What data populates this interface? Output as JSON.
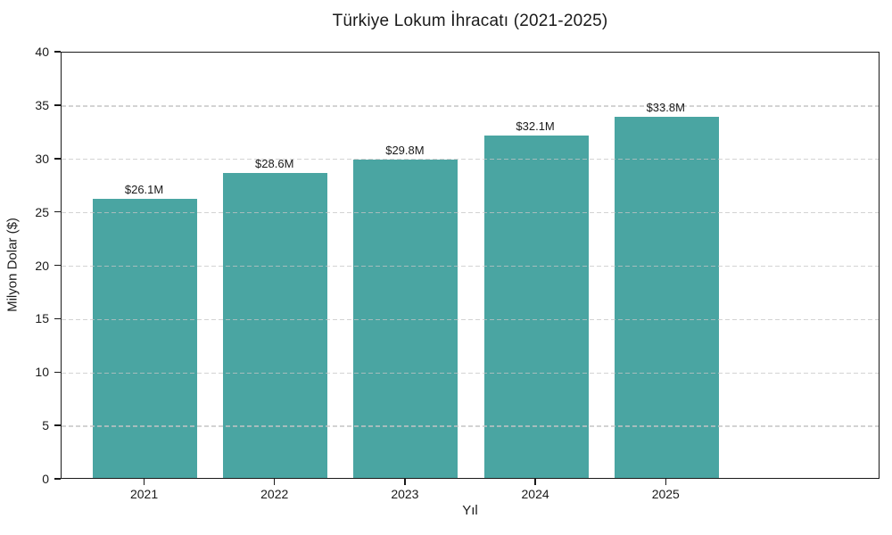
{
  "chart_data": {
    "type": "bar",
    "title": "Türkiye Lokum İhracatı (2021-2025)",
    "xlabel": "Yıl",
    "ylabel": "Milyon Dolar ($)",
    "categories": [
      "2021",
      "2022",
      "2023",
      "2024",
      "2025"
    ],
    "values": [
      26.1,
      28.6,
      29.8,
      32.1,
      33.8
    ],
    "bar_labels": [
      "$26.1M",
      "$28.6M",
      "$29.8M",
      "$32.1M",
      "$33.8M"
    ],
    "ylim": [
      0,
      40
    ],
    "yticks": [
      0,
      5,
      10,
      15,
      20,
      25,
      30,
      35,
      40
    ],
    "grid": "horizontal-dashed-over-bars",
    "legend": "none",
    "colors": {
      "bar": "#4AA5A2",
      "grid": "#c4c4c4",
      "axis": "#1a1a1a",
      "background": "#ffffff"
    }
  }
}
